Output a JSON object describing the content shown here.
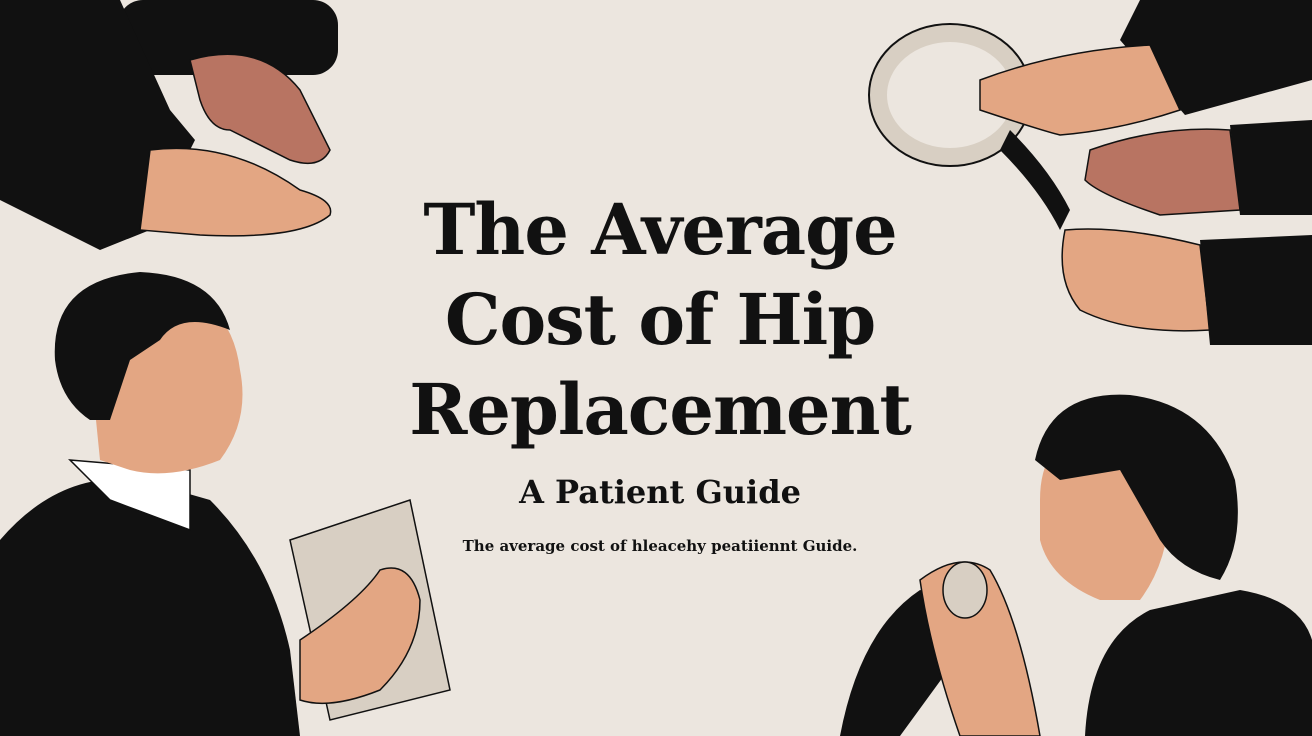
{
  "poster": {
    "title_line1": "The Average",
    "title_line2": "Cost of Hip",
    "title_line3": "Replacement",
    "subtitle": "A Patient Guide",
    "caption": "The average cost of hleacehy peatiiennt Guide."
  },
  "colors": {
    "background": "#ece6df",
    "ink": "#111111",
    "skin_light": "#e3a683",
    "skin_dark": "#b87462",
    "paper": "#d8cfc3"
  }
}
